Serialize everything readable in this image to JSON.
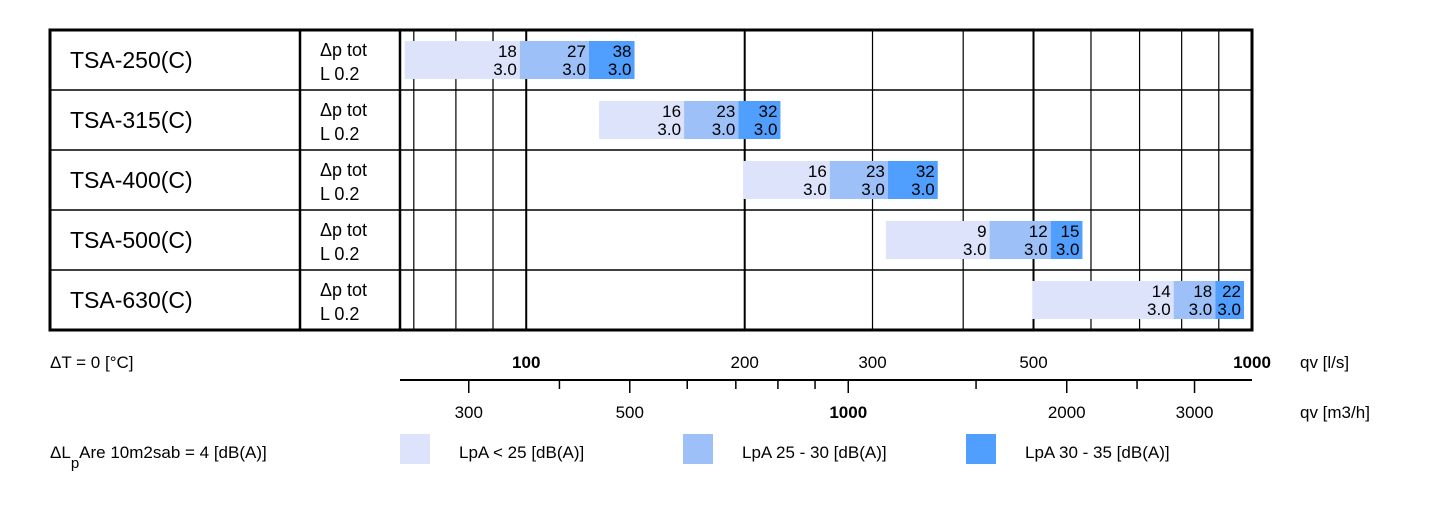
{
  "chart_data": {
    "type": "bar",
    "models": [
      "TSA-250(C)",
      "TSA-315(C)",
      "TSA-400(C)",
      "TSA-500(C)",
      "TSA-630(C)"
    ],
    "row_params": {
      "line1": "Δp tot",
      "line2": "L 0.2"
    },
    "series": [
      {
        "name": "LpA < 25 [dB(A)]",
        "color": "#dce3fb"
      },
      {
        "name": "LpA 25 - 30 [dB(A)]",
        "color": "#9dc0f8"
      },
      {
        "name": "LpA 30 - 35 [dB(A)]",
        "color": "#509ffe"
      }
    ],
    "rows": [
      {
        "model": "TSA-250(C)",
        "segments": [
          {
            "series": 0,
            "from": 68,
            "to": 98,
            "dp": "18",
            "l": "3.0"
          },
          {
            "series": 1,
            "from": 98,
            "to": 122,
            "dp": "27",
            "l": "3.0"
          },
          {
            "series": 2,
            "from": 122,
            "to": 141,
            "dp": "38",
            "l": "3.0"
          }
        ]
      },
      {
        "model": "TSA-315(C)",
        "segments": [
          {
            "series": 0,
            "from": 126,
            "to": 165,
            "dp": "16",
            "l": "3.0"
          },
          {
            "series": 1,
            "from": 165,
            "to": 196,
            "dp": "23",
            "l": "3.0"
          },
          {
            "series": 2,
            "from": 196,
            "to": 224,
            "dp": "32",
            "l": "3.0"
          }
        ]
      },
      {
        "model": "TSA-400(C)",
        "segments": [
          {
            "series": 0,
            "from": 199,
            "to": 262,
            "dp": "16",
            "l": "3.0"
          },
          {
            "series": 1,
            "from": 262,
            "to": 315,
            "dp": "23",
            "l": "3.0"
          },
          {
            "series": 2,
            "from": 315,
            "to": 369,
            "dp": "32",
            "l": "3.0"
          }
        ]
      },
      {
        "model": "TSA-500(C)",
        "segments": [
          {
            "series": 0,
            "from": 313,
            "to": 435,
            "dp": "9",
            "l": "3.0"
          },
          {
            "series": 1,
            "from": 435,
            "to": 528,
            "dp": "12",
            "l": "3.0"
          },
          {
            "series": 2,
            "from": 528,
            "to": 584,
            "dp": "15",
            "l": "3.0"
          }
        ]
      },
      {
        "model": "TSA-630(C)",
        "segments": [
          {
            "series": 0,
            "from": 498,
            "to": 780,
            "dp": "14",
            "l": "3.0"
          },
          {
            "series": 1,
            "from": 780,
            "to": 890,
            "dp": "18",
            "l": "3.0"
          },
          {
            "series": 2,
            "from": 890,
            "to": 975,
            "dp": "22",
            "l": "3.0"
          }
        ]
      }
    ],
    "x_axis_ls": {
      "label": "qv [l/s]",
      "scale": "log",
      "range": [
        67,
        1000
      ],
      "major_ticks": [
        100,
        200,
        300,
        500,
        1000
      ],
      "tick_labels": [
        "100",
        "200",
        "300",
        "500",
        "1000"
      ]
    },
    "x_axis_m3h": {
      "label": "qv [m3/h]",
      "tick_labels": [
        "300",
        "500",
        "1000",
        "2000",
        "3000"
      ],
      "tick_values": [
        300,
        500,
        1000,
        2000,
        3000
      ]
    },
    "delta_t": "ΔT = 0 [°C]",
    "delta_l": {
      "pre": "ΔL",
      "sub": "p",
      "post": "Are 10m2sab = 4 [dB(A)]"
    },
    "grid": true
  }
}
